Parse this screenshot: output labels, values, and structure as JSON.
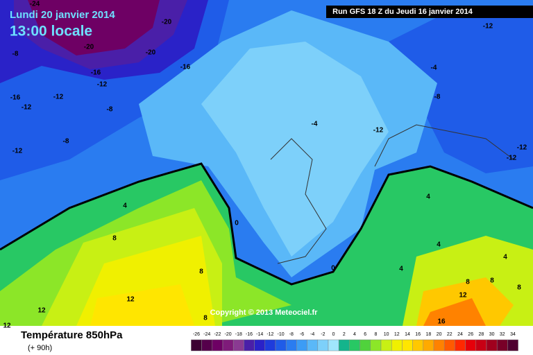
{
  "header": {
    "date": "Lundi 20 janvier 2014",
    "time": "13:00 locale",
    "run": "Run GFS 18 Z du Jeudi 16 janvier 2014"
  },
  "copyright": "Copyright © 2013 Meteociel.fr",
  "footer": {
    "title": "Température 850hPa",
    "lead": "(+ 90h)"
  },
  "contour_labels": [
    -24,
    -20,
    -20,
    -20,
    -8,
    -16,
    -16,
    -12,
    -16,
    -12,
    -12,
    -8,
    -8,
    -12,
    -4,
    -12,
    -8,
    -4,
    -12,
    -12,
    -12,
    4,
    0,
    8,
    8,
    12,
    12,
    12,
    4,
    4,
    4,
    0,
    8,
    8,
    4,
    8,
    12,
    16,
    8
  ],
  "scale": {
    "ticks": [
      -26,
      -24,
      -22,
      -20,
      -18,
      -16,
      -14,
      -12,
      -10,
      -8,
      -6,
      -4,
      -2,
      0,
      2,
      4,
      6,
      8,
      10,
      12,
      14,
      16,
      18,
      20,
      22,
      24,
      26,
      28,
      30,
      32,
      34
    ],
    "colors": [
      "#3c0032",
      "#55004b",
      "#6e0064",
      "#7f1b7a",
      "#8a3a92",
      "#4a1fa8",
      "#2a22c8",
      "#1e3cdc",
      "#1f5ce8",
      "#2a7cf0",
      "#3c9cf5",
      "#5ab8f8",
      "#7dd0fa",
      "#a0e6fc",
      "#14b48c",
      "#28c864",
      "#50d23c",
      "#8ce628",
      "#c8f014",
      "#f0f000",
      "#ffe600",
      "#ffc800",
      "#ffaa00",
      "#ff8200",
      "#ff5a00",
      "#ff2800",
      "#e6000a",
      "#c80014",
      "#a0001e",
      "#780028",
      "#500030"
    ]
  }
}
